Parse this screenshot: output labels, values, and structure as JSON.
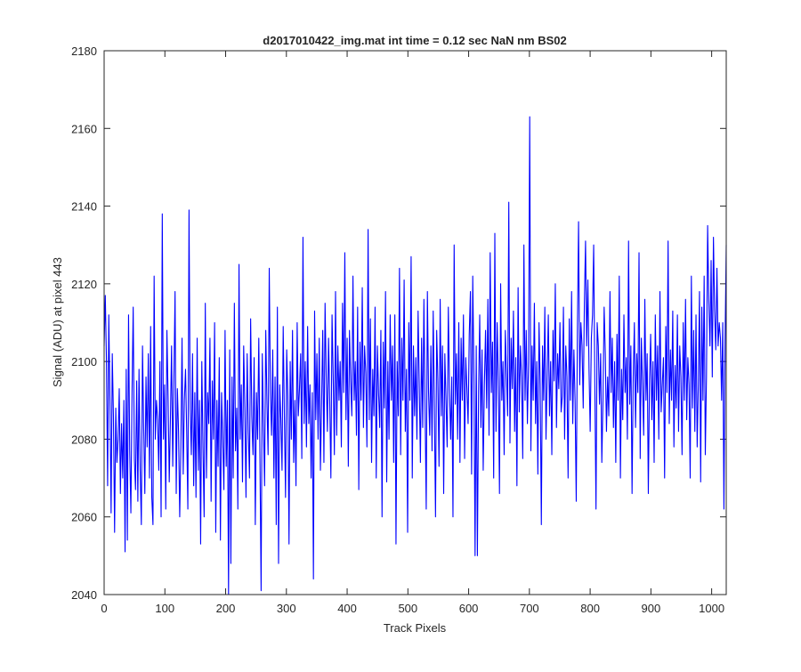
{
  "chart_data": {
    "type": "line",
    "title": "d2017010422_img.mat int time = 0.12 sec  NaN nm BS02",
    "xlabel": "Track Pixels",
    "ylabel": "Signal (ADU) at pixel 443",
    "xlim": [
      0,
      1024
    ],
    "ylim": [
      2040,
      2180
    ],
    "xticks": [
      0,
      100,
      200,
      300,
      400,
      500,
      600,
      700,
      800,
      900,
      1000
    ],
    "yticks": [
      2040,
      2060,
      2080,
      2100,
      2120,
      2140,
      2160,
      2180
    ],
    "grid": false,
    "series": [
      {
        "color": "#0000ff",
        "values": [
          2104,
          2117,
          2100,
          2068,
          2112,
          2090,
          2061,
          2102,
          2086,
          2056,
          2088,
          2074,
          2080,
          2093,
          2066,
          2084,
          2070,
          2090,
          2051,
          2098,
          2054,
          2112,
          2077,
          2061,
          2092,
          2114,
          2075,
          2067,
          2095,
          2064,
          2098,
          2072,
          2058,
          2104,
          2083,
          2066,
          2096,
          2078,
          2102,
          2070,
          2109,
          2065,
          2058,
          2122,
          2080,
          2090,
          2085,
          2072,
          2100,
          2060,
          2138,
          2080,
          2094,
          2062,
          2108,
          2091,
          2069,
          2085,
          2104,
          2073,
          2095,
          2118,
          2066,
          2093,
          2082,
          2060,
          2078,
          2106,
          2071,
          2090,
          2098,
          2082,
          2062,
          2139,
          2088,
          2076,
          2102,
          2068,
          2092,
          2065,
          2106,
          2072,
          2090,
          2053,
          2100,
          2078,
          2060,
          2115,
          2070,
          2092,
          2084,
          2106,
          2064,
          2095,
          2080,
          2110,
          2056,
          2090,
          2073,
          2101,
          2054,
          2092,
          2080,
          2067,
          2108,
          2073,
          2090,
          2040,
          2103,
          2048,
          2096,
          2070,
          2115,
          2077,
          2088,
          2062,
          2125,
          2080,
          2094,
          2069,
          2104,
          2088,
          2065,
          2102,
          2082,
          2070,
          2111,
          2086,
          2076,
          2101,
          2058,
          2092,
          2080,
          2106,
          2075,
          2041,
          2102,
          2084,
          2068,
          2108,
          2090,
          2076,
          2124,
          2092,
          2081,
          2103,
          2070,
          2096,
          2058,
          2114,
          2048,
          2094,
          2085,
          2072,
          2109,
          2086,
          2065,
          2103,
          2091,
          2053,
          2100,
          2080,
          2108,
          2074,
          2090,
          2068,
          2110,
          2086,
          2093,
          2102,
          2075,
          2132,
          2084,
          2100,
          2078,
          2109,
          2084,
          2094,
          2070,
          2092,
          2044,
          2113,
          2085,
          2102,
          2080,
          2106,
          2072,
          2089,
          2108,
          2074,
          2115,
          2096,
          2082,
          2106,
          2090,
          2070,
          2112,
          2096,
          2076,
          2118,
          2081,
          2104,
          2090,
          2100,
          2078,
          2115,
          2092,
          2128,
          2085,
          2106,
          2073,
          2108,
          2095,
          2086,
          2122,
          2090,
          2100,
          2081,
          2114,
          2067,
          2105,
          2090,
          2119,
          2083,
          2104,
          2097,
          2078,
          2134,
          2085,
          2111,
          2074,
          2098,
          2086,
          2114,
          2070,
          2104,
          2092,
          2083,
          2108,
          2060,
          2105,
          2088,
          2118,
          2069,
          2100,
          2080,
          2112,
          2090,
          2104,
          2074,
          2112,
          2053,
          2100,
          2086,
          2124,
          2076,
          2106,
          2090,
          2121,
          2082,
          2098,
          2056,
          2110,
          2090,
          2127,
          2070,
          2104,
          2086,
          2101,
          2080,
          2113,
          2094,
          2074,
          2106,
          2083,
          2116,
          2088,
          2062,
          2118,
          2092,
          2081,
          2104,
          2077,
          2113,
          2088,
          2060,
          2108,
          2095,
          2073,
          2116,
          2086,
          2104,
          2066,
          2102,
          2090,
          2078,
          2114,
          2093,
          2080,
          2096,
          2060,
          2130,
          2089,
          2102,
          2080,
          2110,
          2074,
          2106,
          2090,
          2112,
          2075,
          2101,
          2093,
          2084,
          2107,
          2118,
          2071,
          2122,
          2097,
          2050,
          2104,
          2050,
          2092,
          2112,
          2083,
          2103,
          2072,
          2094,
          2108,
          2088,
          2116,
          2081,
          2128,
          2092,
          2105,
          2070,
          2133,
          2082,
          2110,
          2095,
          2066,
          2120,
          2090,
          2100,
          2076,
          2108,
          2097,
          2086,
          2141,
          2079,
          2106,
          2093,
          2113,
          2082,
          2101,
          2068,
          2119,
          2087,
          2104,
          2096,
          2075,
          2130,
          2090,
          2108,
          2084,
          2100,
          2163,
          2077,
          2104,
          2090,
          2115,
          2084,
          2100,
          2071,
          2110,
          2094,
          2058,
          2104,
          2090,
          2114,
          2080,
          2096,
          2112,
          2086,
          2100,
          2076,
          2108,
          2095,
          2120,
          2083,
          2102,
          2093,
          2110,
          2087,
          2091,
          2114,
          2080,
          2104,
          2096,
          2070,
          2111,
          2090,
          2118,
          2084,
          2103,
          2090,
          2064,
          2108,
          2136,
          2094,
          2110,
          2104,
          2088,
          2115,
          2131,
          2104,
          2121,
          2098,
          2082,
          2106,
          2112,
          2130,
          2094,
          2062,
          2110,
          2104,
          2089,
          2102,
          2074,
          2090,
          2114,
          2102,
          2082,
          2096,
          2086,
          2118,
          2092,
          2106,
          2083,
          2100,
          2074,
          2107,
          2090,
          2122,
          2070,
          2098,
          2085,
          2112,
          2092,
          2101,
          2080,
          2131,
          2089,
          2104,
          2066,
          2096,
          2110,
          2083,
          2102,
          2092,
          2128,
          2075,
          2106,
          2094,
          2081,
          2116,
          2090,
          2102,
          2066,
          2095,
          2107,
          2085,
          2100,
          2074,
          2112,
          2090,
          2104,
          2080,
          2118,
          2087,
          2094,
          2101,
          2070,
          2109,
          2092,
          2131,
          2084,
          2103,
          2090,
          2113,
          2078,
          2099,
          2088,
          2112,
          2082,
          2104,
          2096,
          2076,
          2110,
          2090,
          2116,
          2085,
          2101,
          2094,
          2070,
          2122,
          2088,
          2108,
          2082,
          2112,
          2078,
          2094,
          2118,
          2069,
          2114,
          2090,
          2122,
          2076,
          2096,
          2135,
          2116,
          2104,
          2126,
          2096,
          2132,
          2113,
          2103,
          2124,
          2104,
          2110,
          2106,
          2090,
          2110,
          2062,
          2105,
          2130
        ]
      }
    ]
  }
}
